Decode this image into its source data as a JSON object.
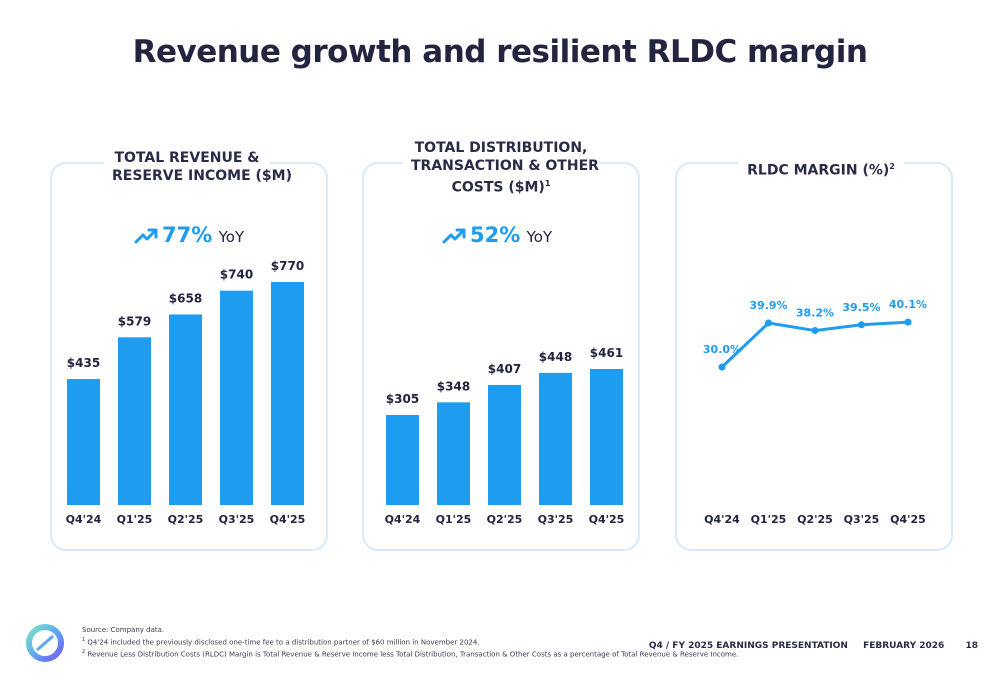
{
  "slide": {
    "title": "Revenue growth and resilient RLDC margin",
    "presentation": "Q4 / FY 2025 EARNINGS PRESENTATION",
    "date": "FEBRUARY 2026",
    "page_number": "18"
  },
  "panels": {
    "revenue": {
      "heading_line1": "TOTAL REVENUE &",
      "heading_line2": "RESERVE INCOME ($M)",
      "yoy_value": "77%",
      "yoy_suffix": "YoY"
    },
    "costs": {
      "heading_line1": "TOTAL DISTRIBUTION,",
      "heading_line2": "TRANSACTION & OTHER",
      "heading_line3": "COSTS ($M)",
      "heading_sup": "1",
      "yoy_value": "52%",
      "yoy_suffix": "YoY"
    },
    "margin": {
      "heading": "RLDC MARGIN (%)",
      "heading_sup": "2"
    }
  },
  "chart_data": [
    {
      "type": "bar",
      "title": "TOTAL REVENUE & RESERVE INCOME ($M)",
      "categories": [
        "Q4'24",
        "Q1'25",
        "Q2'25",
        "Q3'25",
        "Q4'25"
      ],
      "values": [
        435,
        579,
        658,
        740,
        770
      ],
      "labels": [
        "$435",
        "$579",
        "$658",
        "$740",
        "$770"
      ],
      "color": "#1e9cf0"
    },
    {
      "type": "bar",
      "title": "TOTAL DISTRIBUTION, TRANSACTION & OTHER COSTS ($M)",
      "categories": [
        "Q4'24",
        "Q1'25",
        "Q2'25",
        "Q3'25",
        "Q4'25"
      ],
      "values": [
        305,
        348,
        407,
        448,
        461
      ],
      "labels": [
        "$305",
        "$348",
        "$407",
        "$448",
        "$461"
      ],
      "color": "#1e9cf0"
    },
    {
      "type": "line",
      "title": "RLDC MARGIN (%)",
      "categories": [
        "Q4'24",
        "Q1'25",
        "Q2'25",
        "Q3'25",
        "Q4'25"
      ],
      "values": [
        30.0,
        39.9,
        38.2,
        39.5,
        40.1
      ],
      "labels": [
        "30.0%",
        "39.9%",
        "38.2%",
        "39.5%",
        "40.1%"
      ],
      "color": "#1e9cf0"
    }
  ],
  "footnotes": {
    "source": "Source: Company data.",
    "note1_marker": "1",
    "note1": "Q4'24 included the previously disclosed one-time fee to a distribution partner of $60 million in November 2024.",
    "note2_marker": "2",
    "note2": "Revenue Less Distribution Costs (RLDC) Margin is Total Revenue & Reserve Income less Total Distribution, Transaction & Other Costs as a percentage of Total Revenue & Reserve Income."
  },
  "colors": {
    "accent": "#1e9cf0",
    "panel_border": "#d8ebfa",
    "title": "#23243f"
  },
  "icons": {
    "trend": "trending-up-icon",
    "logo": "company-logo-icon"
  }
}
